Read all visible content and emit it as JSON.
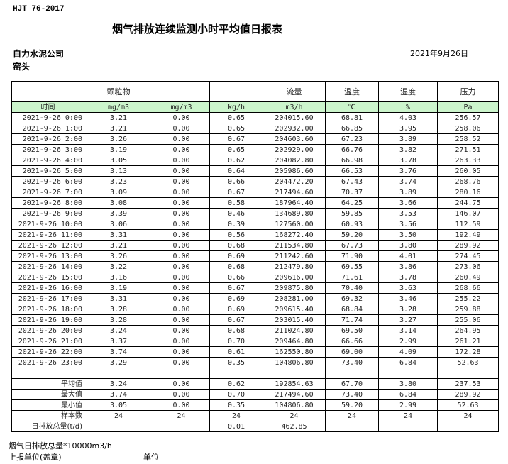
{
  "header": {
    "standard": "HJT  76-2017",
    "title": "烟气排放连续监测小时平均值日报表",
    "company": "自力水泥公司",
    "location": "窑头",
    "date": "2021年9月26日"
  },
  "columns": [
    "",
    "颗粒物",
    "",
    "",
    "流量",
    "温度",
    "湿度",
    "压力"
  ],
  "units": [
    "时间",
    "mg/m3",
    "mg/m3",
    "kg/h",
    "m3/h",
    "℃",
    "%",
    "Pa"
  ],
  "rows": [
    [
      "2021-9-26 0:00",
      "3.21",
      "0.00",
      "0.65",
      "204015.60",
      "68.81",
      "4.03",
      "256.57"
    ],
    [
      "2021-9-26 1:00",
      "3.21",
      "0.00",
      "0.65",
      "202932.00",
      "66.85",
      "3.95",
      "258.06"
    ],
    [
      "2021-9-26 2:00",
      "3.26",
      "0.00",
      "0.67",
      "204603.60",
      "67.23",
      "3.89",
      "258.52"
    ],
    [
      "2021-9-26 3:00",
      "3.19",
      "0.00",
      "0.65",
      "202929.00",
      "66.76",
      "3.82",
      "271.51"
    ],
    [
      "2021-9-26 4:00",
      "3.05",
      "0.00",
      "0.62",
      "204082.80",
      "66.98",
      "3.78",
      "263.33"
    ],
    [
      "2021-9-26 5:00",
      "3.13",
      "0.00",
      "0.64",
      "205986.60",
      "66.53",
      "3.76",
      "260.05"
    ],
    [
      "2021-9-26 6:00",
      "3.23",
      "0.00",
      "0.66",
      "204472.20",
      "67.43",
      "3.74",
      "268.76"
    ],
    [
      "2021-9-26 7:00",
      "3.09",
      "0.00",
      "0.67",
      "217494.60",
      "70.37",
      "3.89",
      "280.16"
    ],
    [
      "2021-9-26 8:00",
      "3.08",
      "0.00",
      "0.58",
      "187964.40",
      "64.25",
      "3.66",
      "244.75"
    ],
    [
      "2021-9-26 9:00",
      "3.39",
      "0.00",
      "0.46",
      "134689.80",
      "59.85",
      "3.53",
      "146.07"
    ],
    [
      "2021-9-26 10:00",
      "3.06",
      "0.00",
      "0.39",
      "127560.00",
      "60.93",
      "3.56",
      "112.59"
    ],
    [
      "2021-9-26 11:00",
      "3.31",
      "0.00",
      "0.56",
      "168272.40",
      "59.20",
      "3.50",
      "192.49"
    ],
    [
      "2021-9-26 12:00",
      "3.21",
      "0.00",
      "0.68",
      "211534.80",
      "67.73",
      "3.80",
      "289.92"
    ],
    [
      "2021-9-26 13:00",
      "3.26",
      "0.00",
      "0.69",
      "211242.60",
      "71.90",
      "4.01",
      "274.45"
    ],
    [
      "2021-9-26 14:00",
      "3.22",
      "0.00",
      "0.68",
      "212479.80",
      "69.55",
      "3.86",
      "273.06"
    ],
    [
      "2021-9-26 15:00",
      "3.16",
      "0.00",
      "0.66",
      "209616.00",
      "71.61",
      "3.78",
      "260.49"
    ],
    [
      "2021-9-26 16:00",
      "3.19",
      "0.00",
      "0.67",
      "209875.80",
      "70.40",
      "3.63",
      "268.66"
    ],
    [
      "2021-9-26 17:00",
      "3.31",
      "0.00",
      "0.69",
      "208281.00",
      "69.32",
      "3.46",
      "255.22"
    ],
    [
      "2021-9-26 18:00",
      "3.28",
      "0.00",
      "0.69",
      "209615.40",
      "68.84",
      "3.28",
      "259.88"
    ],
    [
      "2021-9-26 19:00",
      "3.28",
      "0.00",
      "0.67",
      "203015.40",
      "71.74",
      "3.27",
      "255.06"
    ],
    [
      "2021-9-26 20:00",
      "3.24",
      "0.00",
      "0.68",
      "211024.80",
      "69.50",
      "3.14",
      "264.95"
    ],
    [
      "2021-9-26 21:00",
      "3.37",
      "0.00",
      "0.70",
      "209464.80",
      "66.66",
      "2.99",
      "261.21"
    ],
    [
      "2021-9-26 22:00",
      "3.74",
      "0.00",
      "0.61",
      "162550.80",
      "69.00",
      "4.09",
      "172.28"
    ],
    [
      "2021-9-26 23:00",
      "3.29",
      "0.00",
      "0.35",
      "104806.80",
      "73.40",
      "6.84",
      "52.63"
    ]
  ],
  "summary": [
    [
      "平均值",
      "3.24",
      "0.00",
      "0.62",
      "192854.63",
      "67.70",
      "3.80",
      "237.53"
    ],
    [
      "最大值",
      "3.74",
      "0.00",
      "0.70",
      "217494.60",
      "73.40",
      "6.84",
      "289.92"
    ],
    [
      "最小值",
      "3.05",
      "0.00",
      "0.35",
      "104806.80",
      "59.20",
      "2.99",
      "52.63"
    ],
    [
      "样本数",
      "24",
      "24",
      "24",
      "24",
      "24",
      "24",
      "24"
    ],
    [
      "日排放总量(t/d)",
      "",
      "",
      "0.01",
      "462.85",
      "",
      "",
      ""
    ]
  ],
  "footer": {
    "note": "烟气日排放总量*10000m3/h",
    "reporter": "上报单位(盖章)",
    "unit": "单位"
  }
}
